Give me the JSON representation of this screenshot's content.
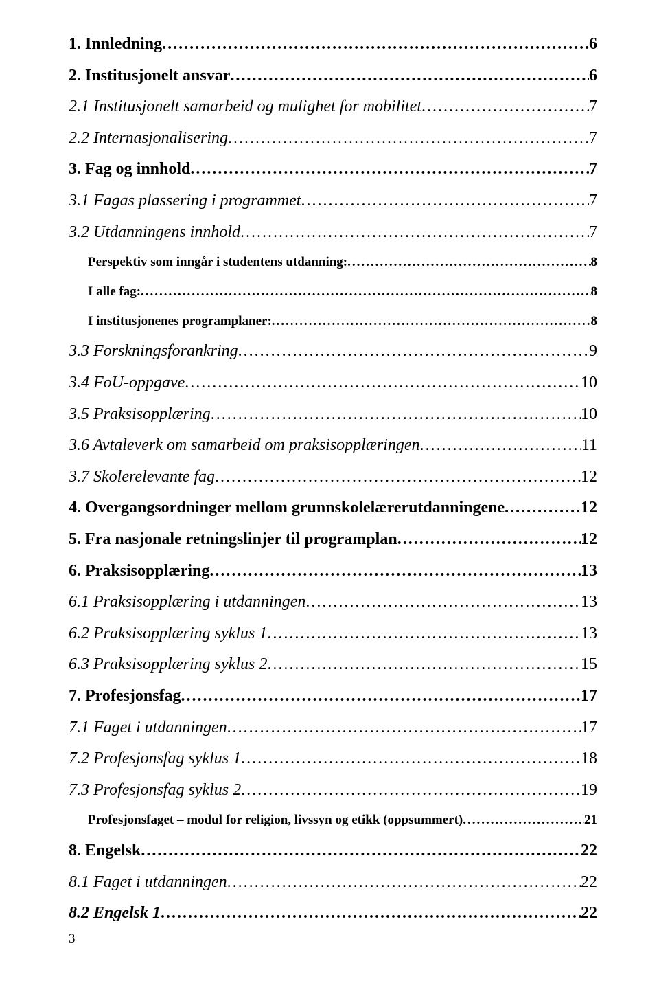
{
  "colors": {
    "bg": "#ffffff",
    "text": "#000000"
  },
  "page_number": "3",
  "entries": [
    {
      "level": "lvl1",
      "label": "1. Innledning",
      "page": "6"
    },
    {
      "level": "lvl1",
      "label": "2. Institusjonelt ansvar",
      "page": "6"
    },
    {
      "level": "lvl2",
      "label": "2.1 Institusjonelt samarbeid og mulighet for mobilitet",
      "page": "7"
    },
    {
      "level": "lvl2",
      "label": "2.2 Internasjonalisering",
      "page": "7"
    },
    {
      "level": "lvl1",
      "label": "3. Fag og innhold",
      "page": "7"
    },
    {
      "level": "lvl2",
      "label": "3.1 Fagas plassering i programmet",
      "page": "7"
    },
    {
      "level": "lvl2",
      "label": "3.2 Utdanningens innhold",
      "page": "7"
    },
    {
      "level": "lvl3",
      "label": "Perspektiv som inngår i studentens utdanning:",
      "page": "8"
    },
    {
      "level": "lvl3",
      "label": "I alle fag:",
      "page": "8"
    },
    {
      "level": "lvl3",
      "label": "I institusjonenes programplaner:",
      "page": "8"
    },
    {
      "level": "lvl2",
      "label": "3.3 Forskningsforankring",
      "page": "9"
    },
    {
      "level": "lvl2",
      "label": "3.4 FoU-oppgave",
      "page": "10"
    },
    {
      "level": "lvl2",
      "label": "3.5 Praksisopplæring",
      "page": "10"
    },
    {
      "level": "lvl2",
      "label": "3.6 Avtaleverk om samarbeid om praksisopplæringen",
      "page": "11"
    },
    {
      "level": "lvl2",
      "label": "3.7 Skolerelevante fag",
      "page": "12"
    },
    {
      "level": "lvl1",
      "label": "4. Overgangsordninger mellom grunnskolelærerutdanningene",
      "page": "12"
    },
    {
      "level": "lvl1",
      "label": "5. Fra nasjonale retningslinjer til programplan",
      "page": "12"
    },
    {
      "level": "lvl1",
      "label": "6. Praksisopplæring",
      "page": "13"
    },
    {
      "level": "lvl2",
      "label": "6.1 Praksisopplæring i utdanningen",
      "page": "13"
    },
    {
      "level": "lvl2",
      "label": "6.2 Praksisopplæring syklus 1",
      "page": "13"
    },
    {
      "level": "lvl2",
      "label": "6.3 Praksisopplæring syklus 2",
      "page": "15"
    },
    {
      "level": "lvl1",
      "label": "7. Profesjonsfag",
      "page": "17"
    },
    {
      "level": "lvl2",
      "label": "7.1 Faget i utdanningen",
      "page": "17"
    },
    {
      "level": "lvl2",
      "label": "7.2 Profesjonsfag syklus 1",
      "page": "18"
    },
    {
      "level": "lvl2",
      "label": "7.3 Profesjonsfag syklus 2",
      "page": "19"
    },
    {
      "level": "lvl3",
      "label": "Profesjonsfaget – modul for religion, livssyn og etikk (oppsummert)",
      "page": "21"
    },
    {
      "level": "lvl1",
      "label": "8. Engelsk",
      "page": "22"
    },
    {
      "level": "lvl2",
      "label": "8.1 Faget i utdanningen",
      "page": "22"
    },
    {
      "level": "lvl2b",
      "label": "8.2 Engelsk 1",
      "page": "22"
    }
  ]
}
